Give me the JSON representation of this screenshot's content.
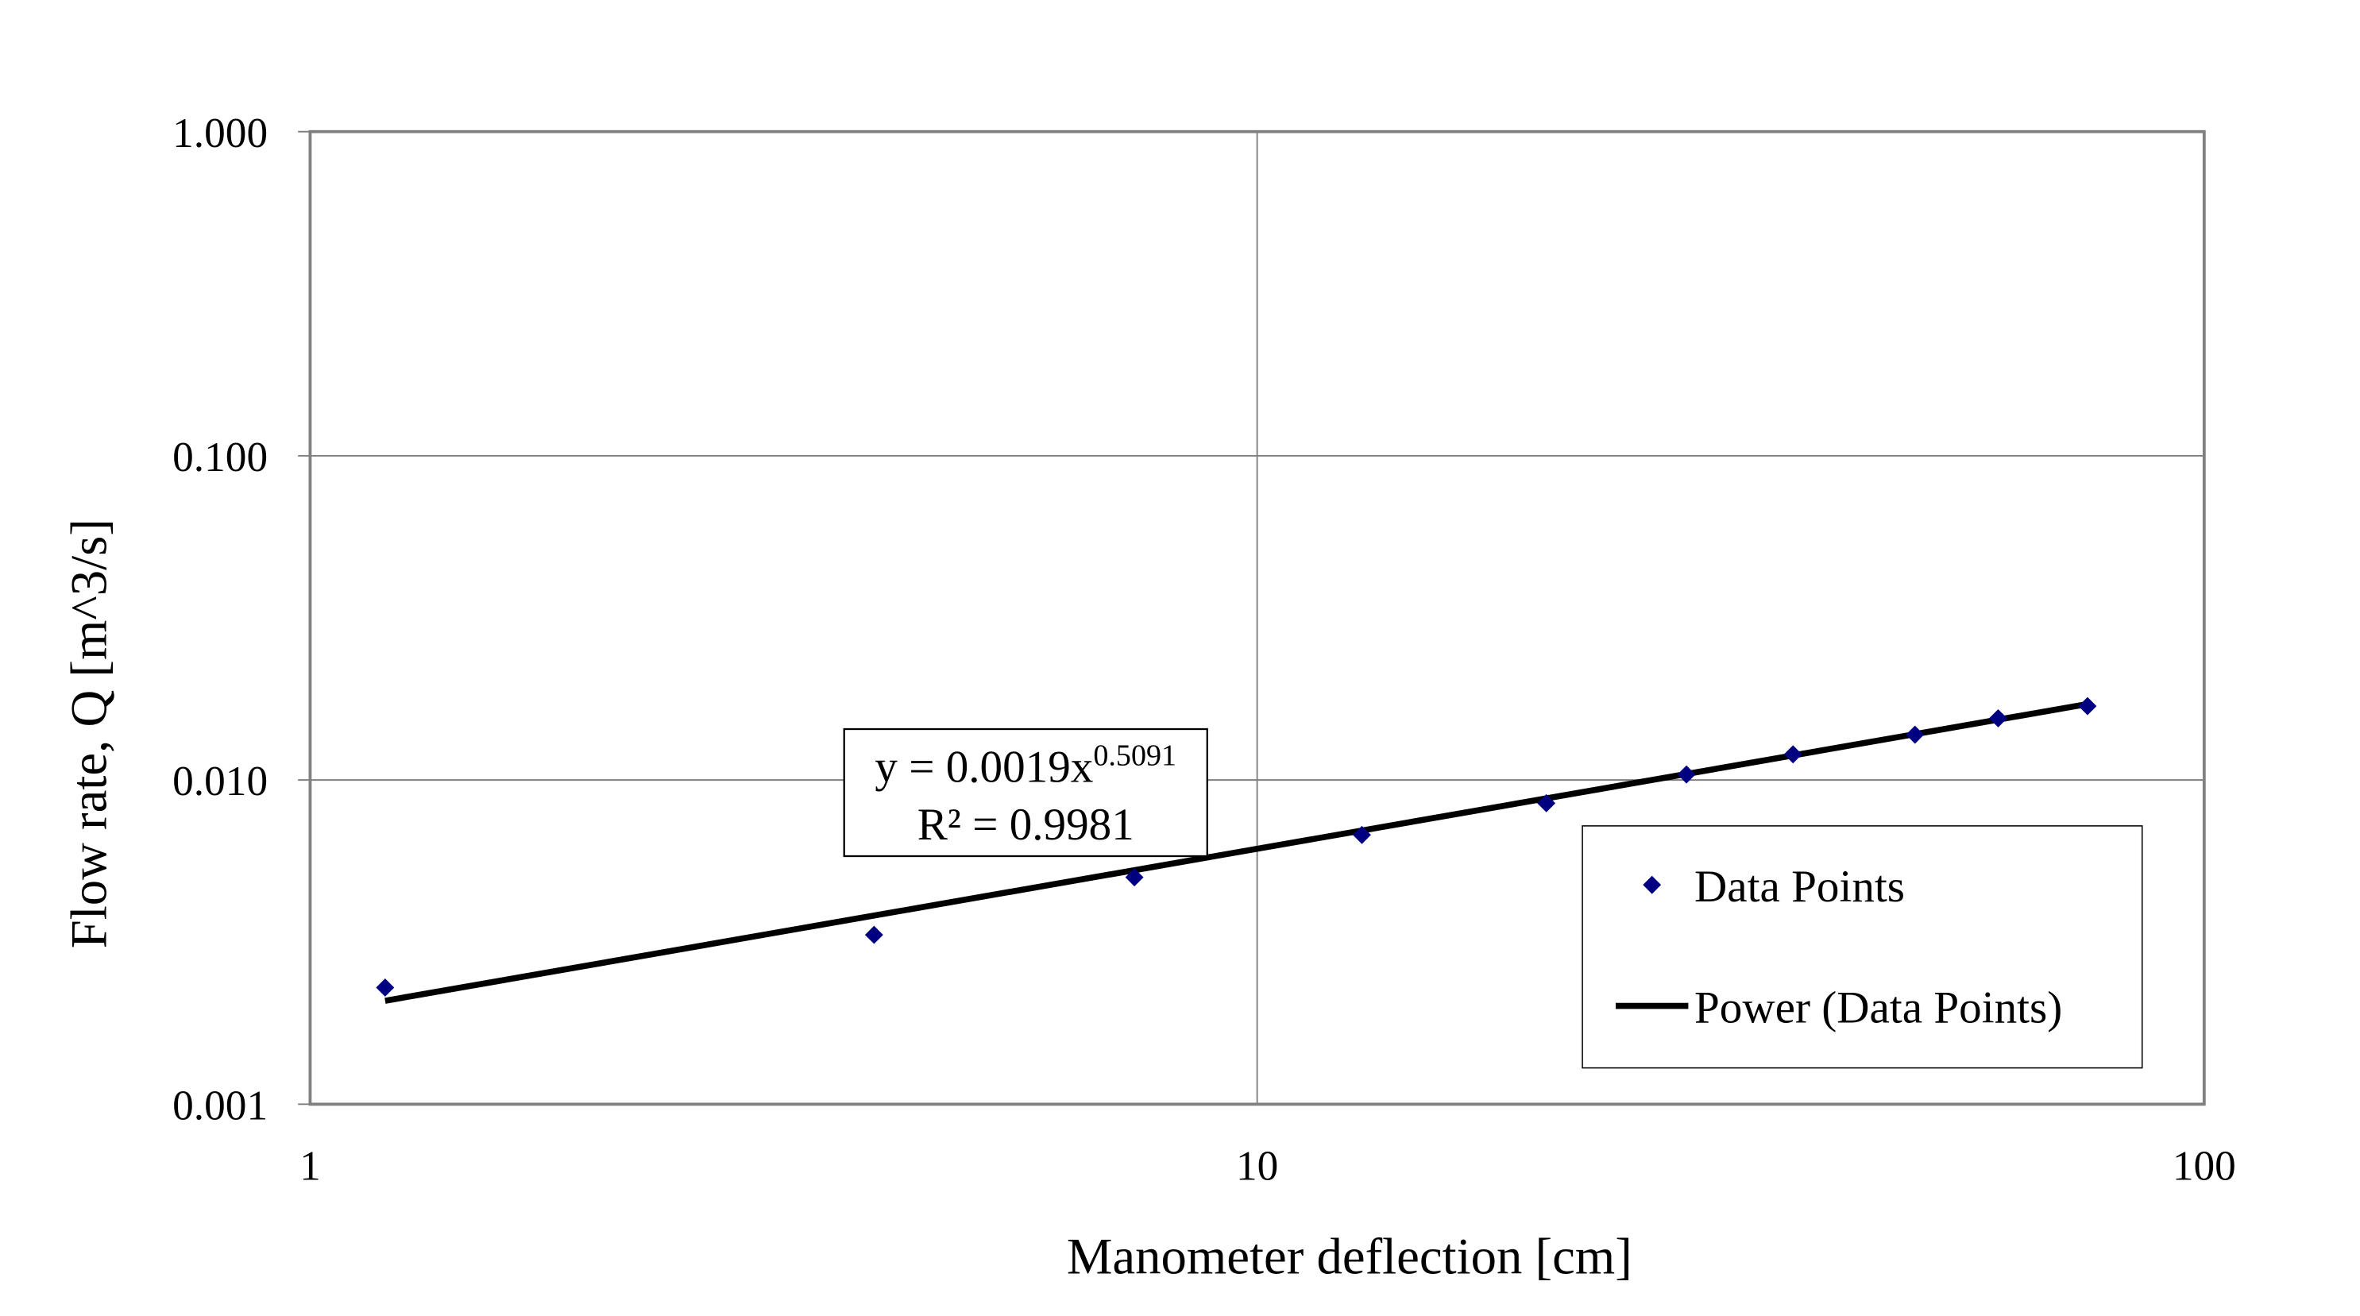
{
  "chart_data": {
    "type": "scatter",
    "title": "",
    "xlabel": "Manometer deflection [cm]",
    "ylabel": "Flow rate, Q [m^3/s]",
    "x_scale": "log",
    "y_scale": "log",
    "xlim": [
      1,
      100
    ],
    "ylim": [
      0.001,
      1.0
    ],
    "x_ticks": [
      "1",
      "10",
      "100"
    ],
    "y_ticks": [
      "0.001",
      "0.010",
      "0.100",
      "1.000"
    ],
    "grid": true,
    "legend_position": "bottom-right",
    "series": [
      {
        "name": "Data Points",
        "marker": "diamond",
        "color": "#000080",
        "x": [
          1.2,
          3.94,
          7.42,
          12.9,
          20.2,
          28.4,
          36.8,
          49.5,
          60.6,
          75.3
        ],
        "y": [
          0.00229,
          0.00333,
          0.00501,
          0.00677,
          0.00848,
          0.0104,
          0.012,
          0.0138,
          0.0155,
          0.0169
        ]
      },
      {
        "name": "Power (Data Points)",
        "type": "trendline",
        "color": "#000000",
        "coefficient": 0.0019,
        "exponent": 0.5091,
        "x_range": [
          1.2,
          75.3
        ]
      }
    ],
    "annotation": {
      "equation_prefix": "y = 0.0019x",
      "equation_exponent": "0.5091",
      "r_squared": "R² = 0.9981"
    }
  }
}
